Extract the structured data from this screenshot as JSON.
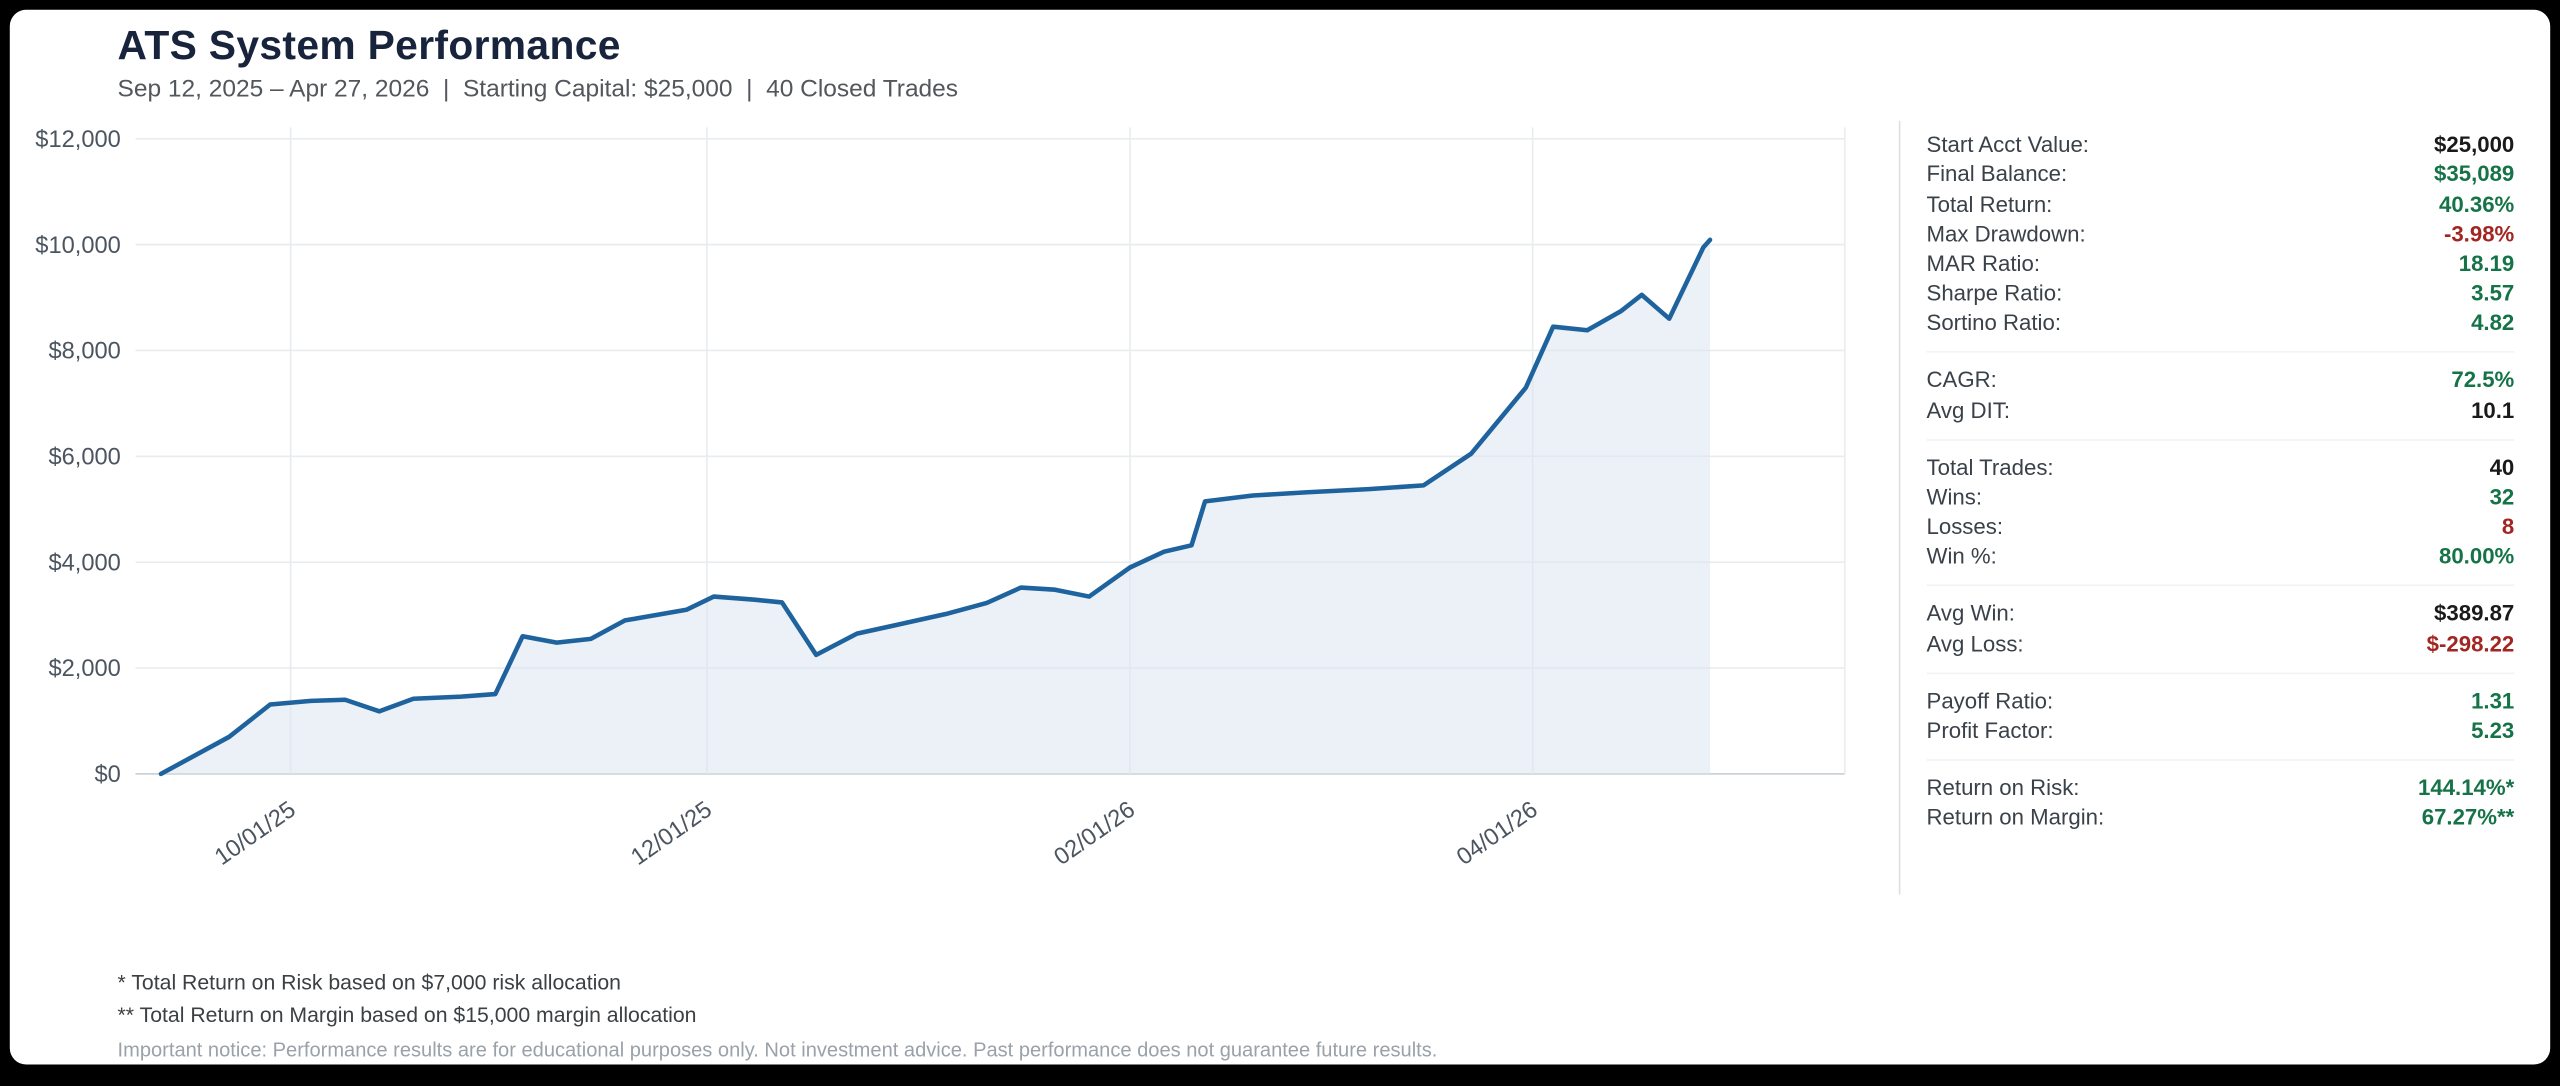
{
  "header": {
    "title": "ATS System Performance",
    "subtitle": "Sep 12, 2025 – Apr 27, 2026  |  Starting Capital: $25,000  |  40 Closed Trades"
  },
  "chart_data": {
    "type": "area",
    "series_name": "Cumulative P&L",
    "x": [
      "2025-09-12",
      "2025-09-22",
      "2025-09-28",
      "2025-10-04",
      "2025-10-09",
      "2025-10-14",
      "2025-10-19",
      "2025-10-26",
      "2025-10-31",
      "2025-11-04",
      "2025-11-09",
      "2025-11-14",
      "2025-11-19",
      "2025-11-24",
      "2025-11-28",
      "2025-12-02",
      "2025-12-08",
      "2025-12-12",
      "2025-12-17",
      "2025-12-23",
      "2025-12-29",
      "2026-01-05",
      "2026-01-11",
      "2026-01-16",
      "2026-01-21",
      "2026-01-26",
      "2026-02-01",
      "2026-02-06",
      "2026-02-10",
      "2026-02-12",
      "2026-02-19",
      "2026-02-27",
      "2026-03-08",
      "2026-03-16",
      "2026-03-23",
      "2026-03-31",
      "2026-04-04",
      "2026-04-09",
      "2026-04-14",
      "2026-04-17",
      "2026-04-21",
      "2026-04-26",
      "2026-04-27"
    ],
    "values": [
      0,
      700,
      1310,
      1380,
      1400,
      1180,
      1420,
      1460,
      1510,
      2600,
      2480,
      2550,
      2900,
      3010,
      3100,
      3350,
      3290,
      3240,
      2250,
      2650,
      2820,
      3020,
      3230,
      3520,
      3480,
      3350,
      3900,
      4200,
      4320,
      5150,
      5260,
      5320,
      5380,
      5450,
      6050,
      7300,
      8450,
      8380,
      8750,
      9050,
      8600,
      9950,
      10089
    ],
    "ylim": [
      0,
      12000
    ],
    "y_ticks": [
      0,
      2000,
      4000,
      6000,
      8000,
      10000,
      12000
    ],
    "y_tick_labels": [
      "$0",
      "$2,000",
      "$4,000",
      "$6,000",
      "$8,000",
      "$10,000",
      "$12,000"
    ],
    "x_ticks": [
      {
        "date": "2025-10-01",
        "label": "10/01/25"
      },
      {
        "date": "2025-12-01",
        "label": "12/01/25"
      },
      {
        "date": "2026-02-01",
        "label": "02/01/26"
      },
      {
        "date": "2026-04-01",
        "label": "04/01/26"
      }
    ],
    "grid": true,
    "legend": "none",
    "line_color": "#1f639e",
    "fill_color": "#dce6f0"
  },
  "stats": {
    "groups": [
      {
        "rows": [
          {
            "label": "Start Acct Value:",
            "value": "$25,000",
            "tone": "neutral"
          },
          {
            "label": "Final Balance:",
            "value": "$35,089",
            "tone": "positive"
          },
          {
            "label": "Total Return:",
            "value": "40.36%",
            "tone": "positive"
          },
          {
            "label": "Max Drawdown:",
            "value": "-3.98%",
            "tone": "negative"
          },
          {
            "label": "MAR Ratio:",
            "value": "18.19",
            "tone": "positive"
          },
          {
            "label": "Sharpe Ratio:",
            "value": "3.57",
            "tone": "positive"
          },
          {
            "label": "Sortino Ratio:",
            "value": "4.82",
            "tone": "positive"
          }
        ]
      },
      {
        "rows": [
          {
            "label": "CAGR:",
            "value": "72.5%",
            "tone": "positive"
          },
          {
            "label": "Avg DIT:",
            "value": "10.1",
            "tone": "neutral"
          }
        ]
      },
      {
        "rows": [
          {
            "label": "Total Trades:",
            "value": "40",
            "tone": "neutral"
          },
          {
            "label": "Wins:",
            "value": "32",
            "tone": "positive"
          },
          {
            "label": "Losses:",
            "value": "8",
            "tone": "negative"
          },
          {
            "label": "Win %:",
            "value": "80.00%",
            "tone": "positive"
          }
        ]
      },
      {
        "rows": [
          {
            "label": "Avg Win:",
            "value": "$389.87",
            "tone": "neutral"
          },
          {
            "label": "Avg Loss:",
            "value": "$-298.22",
            "tone": "negative"
          }
        ]
      },
      {
        "rows": [
          {
            "label": "Payoff Ratio:",
            "value": "1.31",
            "tone": "positive"
          },
          {
            "label": "Profit Factor:",
            "value": "5.23",
            "tone": "positive"
          }
        ]
      },
      {
        "rows": [
          {
            "label": "Return on Risk:",
            "value": "144.14%*",
            "tone": "positive"
          },
          {
            "label": "Return on Margin:",
            "value": "67.27%**",
            "tone": "positive"
          }
        ]
      }
    ]
  },
  "footnotes": [
    "* Total Return on Risk based on $7,000 risk allocation",
    "** Total Return on Margin based on $15,000 margin allocation"
  ],
  "disclaimer": "Important notice: Performance results are for educational purposes only. Not investment advice. Past performance does not guarantee future results.",
  "colors": {
    "positive": "#157347",
    "negative": "#a12622",
    "neutral": "#1a1a1a",
    "title": "#17243c"
  }
}
